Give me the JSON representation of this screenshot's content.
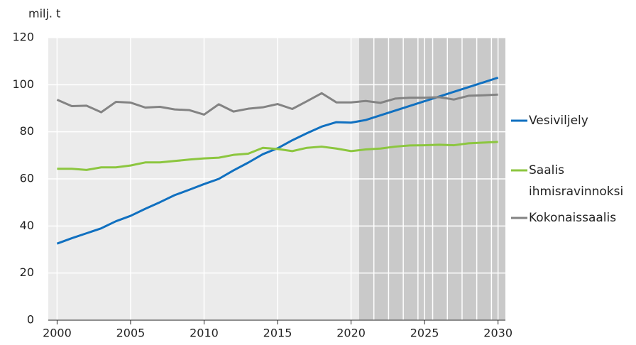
{
  "chart_data": {
    "type": "line",
    "y_label": "milj. t",
    "x": [
      2000,
      2001,
      2002,
      2003,
      2004,
      2005,
      2006,
      2007,
      2008,
      2009,
      2010,
      2011,
      2012,
      2013,
      2014,
      2015,
      2016,
      2017,
      2018,
      2019,
      2020,
      2021,
      2022,
      2023,
      2024,
      2025,
      2026,
      2027,
      2028,
      2029,
      2030
    ],
    "series": [
      {
        "name": "Vesiviljely",
        "color": "#1070c0",
        "values": [
          32.5,
          34.8,
          36.9,
          39.0,
          42.0,
          44.3,
          47.3,
          50.1,
          53.1,
          55.4,
          57.8,
          60.0,
          63.6,
          66.9,
          70.5,
          73.0,
          76.4,
          79.4,
          82.2,
          84.1,
          83.9,
          85.0,
          87.0,
          89.0,
          91.0,
          93.0,
          95.0,
          97.0,
          99.0,
          101.0,
          103.0
        ]
      },
      {
        "name": "Saalis ihmisravinnoksi",
        "color": "#8cc63f",
        "values": [
          64.3,
          64.3,
          63.8,
          64.9,
          64.9,
          65.7,
          67.0,
          67.0,
          67.6,
          68.2,
          68.7,
          69.0,
          70.2,
          70.7,
          73.2,
          72.7,
          71.8,
          73.2,
          73.7,
          72.9,
          71.8,
          72.5,
          72.9,
          73.7,
          74.2,
          74.3,
          74.5,
          74.3,
          75.1,
          75.4,
          75.7
        ]
      },
      {
        "name": "Kokonaissaalis",
        "color": "#838383",
        "values": [
          93.6,
          90.9,
          91.1,
          88.3,
          92.7,
          92.4,
          90.3,
          90.6,
          89.5,
          89.2,
          87.3,
          91.7,
          88.6,
          89.8,
          90.4,
          91.8,
          89.7,
          93.0,
          96.4,
          92.5,
          92.5,
          93.1,
          92.3,
          94.1,
          94.5,
          94.5,
          94.7,
          93.7,
          95.3,
          95.5,
          95.8
        ]
      }
    ],
    "xlim": [
      1999.4,
      2030.5
    ],
    "xticks": [
      2000,
      2005,
      2010,
      2015,
      2020,
      2025,
      2030
    ],
    "ylim": [
      0,
      120
    ],
    "yticks": [
      0,
      20,
      40,
      60,
      80,
      100,
      120
    ],
    "grid": true
  }
}
